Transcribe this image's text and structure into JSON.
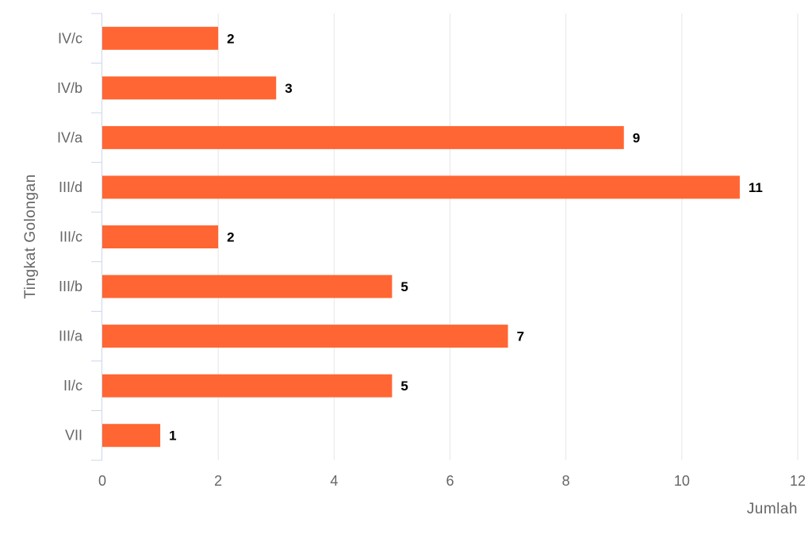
{
  "chart_data": {
    "type": "bar",
    "orientation": "horizontal",
    "categories": [
      "IV/c",
      "IV/b",
      "IV/a",
      "III/d",
      "III/c",
      "III/b",
      "III/a",
      "II/c",
      "VII"
    ],
    "values": [
      2,
      3,
      9,
      11,
      2,
      5,
      7,
      5,
      1
    ],
    "xlabel": "Jumlah",
    "ylabel": "Tingkat Golongan",
    "xlim": [
      0,
      12
    ],
    "xticks": [
      0,
      2,
      4,
      6,
      8,
      10,
      12
    ],
    "grid": true,
    "legend": "none",
    "data_labels": true,
    "bar_color": "#ff6633",
    "grid_color": "#e6e6e6",
    "axis_line_color": "#ccd6eb"
  }
}
